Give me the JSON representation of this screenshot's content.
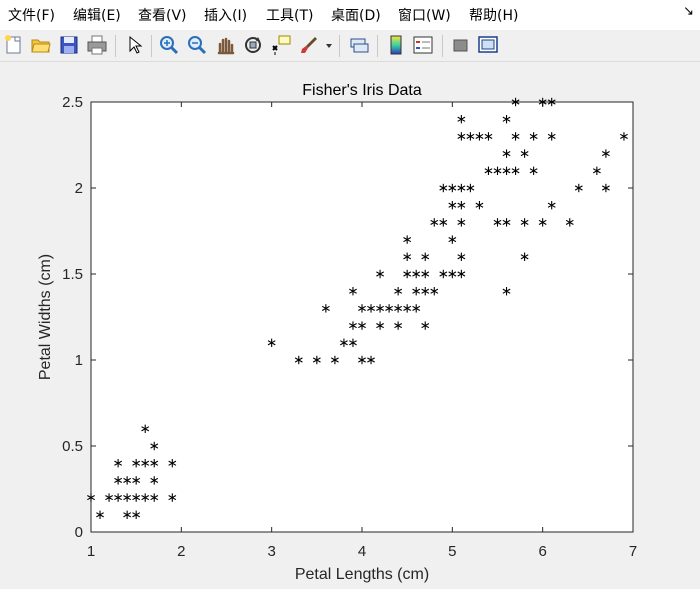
{
  "window": {
    "menu": [
      "文件(F)",
      "编辑(E)",
      "查看(V)",
      "插入(I)",
      "工具(T)",
      "桌面(D)",
      "窗口(W)",
      "帮助(H)"
    ],
    "close_glyph": "↘"
  },
  "toolbar": {
    "icons": [
      "new-figure-icon",
      "open-file-icon",
      "save-icon",
      "print-icon",
      "pointer-icon",
      "zoom-in-icon",
      "zoom-out-icon",
      "pan-hand-icon",
      "rotate-3d-icon",
      "data-cursor-icon",
      "brush-icon",
      "brush-dropdown-icon",
      "link-plot-icon",
      "colorbar-icon",
      "legend-icon",
      "hide-plot-tools-icon",
      "show-plot-tools-icon"
    ]
  },
  "chart_data": {
    "type": "scatter",
    "title": "Fisher's Iris Data",
    "xlabel": "Petal Lengths (cm)",
    "ylabel": "Petal Widths (cm)",
    "xlim": [
      1,
      7
    ],
    "ylim": [
      0,
      2.5
    ],
    "xticks": [
      "1",
      "2",
      "3",
      "4",
      "5",
      "6",
      "7"
    ],
    "yticks": [
      "0",
      "0.5",
      "1",
      "1.5",
      "2",
      "2.5"
    ],
    "marker": "*",
    "grid": false,
    "points": [
      [
        1.0,
        0.2
      ],
      [
        1.1,
        0.1
      ],
      [
        1.2,
        0.2
      ],
      [
        1.3,
        0.2
      ],
      [
        1.3,
        0.3
      ],
      [
        1.3,
        0.4
      ],
      [
        1.4,
        0.1
      ],
      [
        1.4,
        0.2
      ],
      [
        1.4,
        0.3
      ],
      [
        1.5,
        0.1
      ],
      [
        1.5,
        0.2
      ],
      [
        1.5,
        0.3
      ],
      [
        1.5,
        0.4
      ],
      [
        1.6,
        0.2
      ],
      [
        1.6,
        0.4
      ],
      [
        1.6,
        0.6
      ],
      [
        1.7,
        0.2
      ],
      [
        1.7,
        0.3
      ],
      [
        1.7,
        0.4
      ],
      [
        1.7,
        0.5
      ],
      [
        1.9,
        0.2
      ],
      [
        1.9,
        0.4
      ],
      [
        3.0,
        1.1
      ],
      [
        3.3,
        1.0
      ],
      [
        3.5,
        1.0
      ],
      [
        3.6,
        1.3
      ],
      [
        3.7,
        1.0
      ],
      [
        3.8,
        1.1
      ],
      [
        3.9,
        1.1
      ],
      [
        3.9,
        1.2
      ],
      [
        3.9,
        1.4
      ],
      [
        4.0,
        1.0
      ],
      [
        4.0,
        1.2
      ],
      [
        4.0,
        1.3
      ],
      [
        4.1,
        1.0
      ],
      [
        4.1,
        1.3
      ],
      [
        4.2,
        1.2
      ],
      [
        4.2,
        1.3
      ],
      [
        4.2,
        1.5
      ],
      [
        4.3,
        1.3
      ],
      [
        4.4,
        1.2
      ],
      [
        4.4,
        1.3
      ],
      [
        4.4,
        1.4
      ],
      [
        4.5,
        1.3
      ],
      [
        4.5,
        1.5
      ],
      [
        4.5,
        1.6
      ],
      [
        4.5,
        1.7
      ],
      [
        4.6,
        1.3
      ],
      [
        4.6,
        1.4
      ],
      [
        4.6,
        1.5
      ],
      [
        4.7,
        1.2
      ],
      [
        4.7,
        1.4
      ],
      [
        4.7,
        1.5
      ],
      [
        4.7,
        1.6
      ],
      [
        4.8,
        1.4
      ],
      [
        4.8,
        1.8
      ],
      [
        4.9,
        1.5
      ],
      [
        4.9,
        1.8
      ],
      [
        4.9,
        2.0
      ],
      [
        5.0,
        1.5
      ],
      [
        5.0,
        1.7
      ],
      [
        5.0,
        1.9
      ],
      [
        5.0,
        2.0
      ],
      [
        5.1,
        1.5
      ],
      [
        5.1,
        1.6
      ],
      [
        5.1,
        1.8
      ],
      [
        5.1,
        1.9
      ],
      [
        5.1,
        2.0
      ],
      [
        5.1,
        2.3
      ],
      [
        5.1,
        2.4
      ],
      [
        5.2,
        2.0
      ],
      [
        5.2,
        2.3
      ],
      [
        5.3,
        1.9
      ],
      [
        5.3,
        2.3
      ],
      [
        5.4,
        2.1
      ],
      [
        5.4,
        2.3
      ],
      [
        5.5,
        1.8
      ],
      [
        5.5,
        2.1
      ],
      [
        5.6,
        1.4
      ],
      [
        5.6,
        1.8
      ],
      [
        5.6,
        2.1
      ],
      [
        5.6,
        2.2
      ],
      [
        5.6,
        2.4
      ],
      [
        5.7,
        2.1
      ],
      [
        5.7,
        2.3
      ],
      [
        5.7,
        2.5
      ],
      [
        5.8,
        1.6
      ],
      [
        5.8,
        1.8
      ],
      [
        5.8,
        2.2
      ],
      [
        5.9,
        2.1
      ],
      [
        5.9,
        2.3
      ],
      [
        6.0,
        1.8
      ],
      [
        6.0,
        2.5
      ],
      [
        6.1,
        1.9
      ],
      [
        6.1,
        2.3
      ],
      [
        6.1,
        2.5
      ],
      [
        6.3,
        1.8
      ],
      [
        6.4,
        2.0
      ],
      [
        6.6,
        2.1
      ],
      [
        6.7,
        2.0
      ],
      [
        6.7,
        2.2
      ],
      [
        6.9,
        2.3
      ]
    ]
  }
}
